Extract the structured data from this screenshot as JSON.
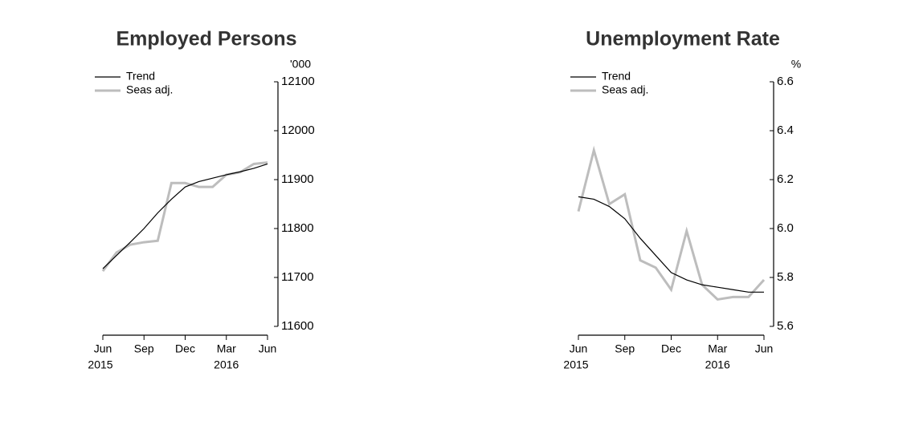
{
  "chart_data": [
    {
      "type": "line",
      "title": "Employed Persons",
      "unit_label": "'000",
      "categories": [
        "Jun",
        null,
        null,
        "Sep",
        null,
        null,
        "Dec",
        null,
        null,
        "Mar",
        null,
        null,
        "Jun"
      ],
      "years": [
        "2015",
        null,
        null,
        null,
        null,
        null,
        null,
        null,
        null,
        "2016",
        null,
        null,
        null
      ],
      "series": [
        {
          "name": "Trend",
          "color": "#000000",
          "values": [
            11718,
            11745,
            11772,
            11800,
            11832,
            11860,
            11885,
            11896,
            11903,
            11910,
            11916,
            11923,
            11932
          ]
        },
        {
          "name": "Seas adj.",
          "color": "#bdbdbd",
          "values": [
            11713,
            11751,
            11767,
            11772,
            11775,
            11893,
            11893,
            11885,
            11885,
            11910,
            11915,
            11932,
            11935
          ]
        }
      ],
      "ylim": [
        11600,
        12100
      ],
      "yticks": [
        11600,
        11700,
        11800,
        11900,
        12000,
        12100
      ]
    },
    {
      "type": "line",
      "title": "Unemployment Rate",
      "unit_label": "%",
      "categories": [
        "Jun",
        null,
        null,
        "Sep",
        null,
        null,
        "Dec",
        null,
        null,
        "Mar",
        null,
        null,
        "Jun"
      ],
      "years": [
        "2015",
        null,
        null,
        null,
        null,
        null,
        null,
        null,
        null,
        "2016",
        null,
        null,
        null
      ],
      "series": [
        {
          "name": "Trend",
          "color": "#000000",
          "values": [
            6.13,
            6.12,
            6.09,
            6.04,
            5.96,
            5.89,
            5.82,
            5.79,
            5.77,
            5.76,
            5.75,
            5.74,
            5.74
          ]
        },
        {
          "name": "Seas adj.",
          "color": "#bdbdbd",
          "values": [
            6.07,
            6.32,
            6.1,
            6.14,
            5.87,
            5.84,
            5.75,
            5.99,
            5.77,
            5.71,
            5.72,
            5.72,
            5.79
          ]
        }
      ],
      "ylim": [
        5.6,
        6.6
      ],
      "yticks": [
        {
          "value": 5.6,
          "label": "5.6"
        },
        {
          "value": 5.8,
          "label": "5.8"
        },
        {
          "value": 6.0,
          "label": "6.0"
        },
        {
          "value": 6.2,
          "label": "6.2"
        },
        {
          "value": 6.4,
          "label": "6.4"
        },
        {
          "value": 6.6,
          "label": "6.6"
        }
      ]
    }
  ]
}
